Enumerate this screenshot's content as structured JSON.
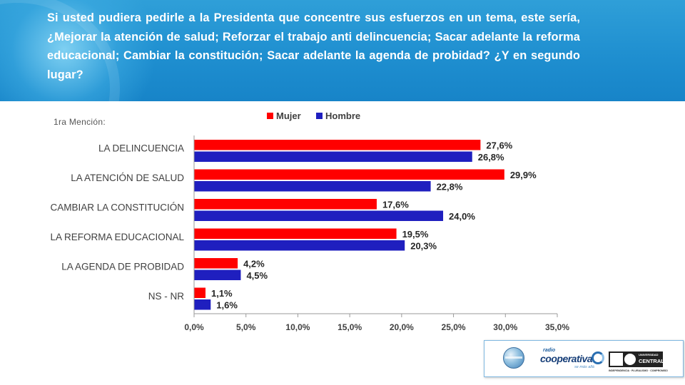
{
  "header": {
    "question": "Si usted pudiera pedirle a la Presidenta que concentre sus esfuerzos en un tema, este sería, ¿Mejorar la atención de salud; Reforzar el trabajo anti delincuencia; Sacar adelante la reforma educacional; Cambiar la constitución; Sacar adelante la agenda de probidad? ¿Y en segundo lugar?",
    "background_color": "#1f8fd0"
  },
  "mention_label": "1ra Mención:",
  "chart_data": {
    "type": "bar",
    "orientation": "horizontal",
    "categories": [
      "LA DELINCUENCIA",
      "LA ATENCIÓN DE SALUD",
      "CAMBIAR LA CONSTITUCIÓN",
      "LA REFORMA EDUCACIONAL",
      "LA AGENDA DE PROBIDAD",
      "NS - NR"
    ],
    "series": [
      {
        "name": "Mujer",
        "color": "#ff0000",
        "values": [
          27.6,
          29.9,
          17.6,
          19.5,
          4.2,
          1.1
        ],
        "labels": [
          "27,6%",
          "29,9%",
          "17,6%",
          "19,5%",
          "4,2%",
          "1,1%"
        ]
      },
      {
        "name": "Hombre",
        "color": "#1f1fbf",
        "values": [
          26.8,
          22.8,
          24.0,
          20.3,
          4.5,
          1.6
        ],
        "labels": [
          "26,8%",
          "22,8%",
          "24,0%",
          "20,3%",
          "4,5%",
          "1,6%"
        ]
      }
    ],
    "xlim": [
      0,
      35
    ],
    "xticks": [
      "0,0%",
      "5,0%",
      "10,0%",
      "15,0%",
      "20,0%",
      "25,0%",
      "30,0%",
      "35,0%"
    ],
    "legend_position": "top",
    "grid": false
  },
  "logos": {
    "radio_small": "radio",
    "radio_main": "cooperativa",
    "radio_tag": "se más allá",
    "university_top": "UNIVERSIDAD",
    "university_main": "CENTRAL",
    "university_motto": "INDEPENDENCIA · PLURALISMO · COMPROMISO"
  }
}
